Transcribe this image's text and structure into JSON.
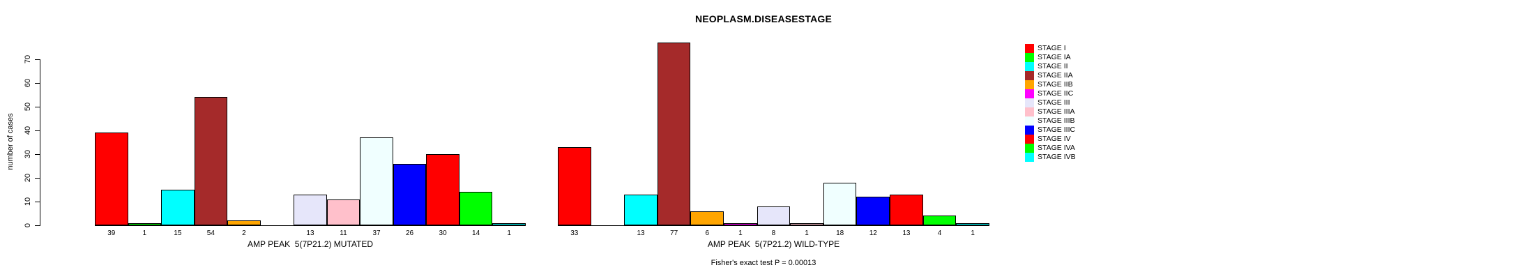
{
  "chart_data": {
    "type": "bar",
    "title": "NEOPLASM.DISEASESTAGE",
    "ylabel": "number of cases",
    "ylim": [
      0,
      70
    ],
    "yticks": [
      0,
      10,
      20,
      30,
      40,
      50,
      60,
      70
    ],
    "grid": false,
    "legend_position": "right",
    "categories": [
      "STAGE I",
      "STAGE IA",
      "STAGE II",
      "STAGE IIA",
      "STAGE IIB",
      "STAGE IIC",
      "STAGE III",
      "STAGE IIIA",
      "STAGE IIIB",
      "STAGE IIIC",
      "STAGE IV",
      "STAGE IVA",
      "STAGE IVB"
    ],
    "colors": [
      "#FF0000",
      "#00FF00",
      "#00FFFF",
      "#A52A2A",
      "#FFA500",
      "#FF00FF",
      "#E6E6FA",
      "#FFC0CB",
      "#F0FFFF",
      "#0000FF",
      "#FF0000",
      "#00FF00",
      "#00FFFF"
    ],
    "series": [
      {
        "name": "AMP PEAK  5(7P21.2) MUTATED",
        "values": [
          39,
          1,
          15,
          54,
          2,
          0,
          13,
          11,
          37,
          26,
          30,
          14,
          1
        ]
      },
      {
        "name": "AMP PEAK  5(7P21.2) WILD-TYPE",
        "values": [
          33,
          0,
          13,
          77,
          6,
          1,
          8,
          1,
          18,
          12,
          13,
          4,
          1
        ]
      }
    ],
    "footer": "Fisher's exact test P = 0.00013"
  }
}
